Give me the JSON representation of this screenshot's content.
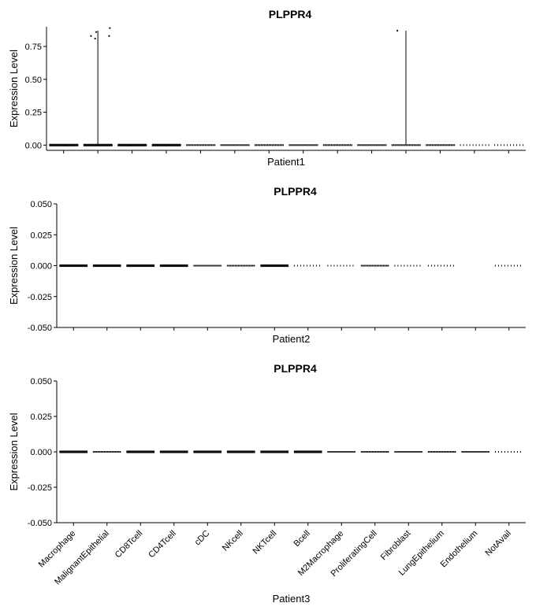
{
  "chart_data": [
    {
      "type": "violin",
      "title": "PLPPR4",
      "xlabel": "Patient1",
      "ylabel": "Expression Level",
      "ylim": [
        -0.04,
        0.9
      ],
      "yticks": [
        "0.00",
        "0.25",
        "0.50",
        "0.75"
      ],
      "ytick_values": [
        0,
        0.25,
        0.5,
        0.75
      ],
      "categories": [
        "Macrophage",
        "MalignantEpithelial",
        "CD8Tcell",
        "CD4Tcell",
        "cDC",
        "NKcell",
        "NKTcell",
        "Bcell",
        "M2Macrophage",
        "ProliferatingCell",
        "Fibroblast",
        "LungEpithelium",
        "Endothelium",
        "NotAvail"
      ],
      "show_x_tick_labels": false,
      "violin_max": [
        0,
        0.87,
        0,
        0,
        0,
        0,
        0,
        0,
        0,
        0,
        0.87,
        0,
        0,
        0
      ],
      "dot_density": [
        3,
        3,
        3,
        3,
        2,
        2,
        2,
        2,
        2,
        2,
        2,
        2,
        1,
        1
      ],
      "outliers": [
        {
          "category": "MalignantEpithelial",
          "jitter": -0.2,
          "y": 0.83
        },
        {
          "category": "MalignantEpithelial",
          "jitter": -0.08,
          "y": 0.81
        },
        {
          "category": "MalignantEpithelial",
          "jitter": -0.05,
          "y": 0.86
        },
        {
          "category": "MalignantEpithelial",
          "jitter": 0.35,
          "y": 0.89
        },
        {
          "category": "MalignantEpithelial",
          "jitter": 0.33,
          "y": 0.83
        },
        {
          "category": "Fibroblast",
          "jitter": -0.25,
          "y": 0.87
        }
      ]
    },
    {
      "type": "violin",
      "title": "PLPPR4",
      "xlabel": "Patient2",
      "ylabel": "Expression Level",
      "ylim": [
        -0.05,
        0.05
      ],
      "yticks": [
        "-0.050",
        "-0.025",
        "0.000",
        "0.025",
        "0.050"
      ],
      "ytick_values": [
        -0.05,
        -0.025,
        0,
        0.025,
        0.05
      ],
      "categories": [
        "Macrophage",
        "MalignantEpithelial",
        "CD8Tcell",
        "CD4Tcell",
        "cDC",
        "NKcell",
        "NKTcell",
        "Bcell",
        "M2Macrophage",
        "ProliferatingCell",
        "Fibroblast",
        "LungEpithelium",
        "Endothelium",
        "NotAvail"
      ],
      "show_x_tick_labels": false,
      "violin_max": [
        0,
        0,
        0,
        0,
        0,
        0,
        0,
        0,
        0,
        0,
        0,
        0,
        0,
        0
      ],
      "dot_density": [
        3,
        3,
        3,
        3,
        2,
        2,
        3,
        1,
        1,
        2,
        1,
        1,
        0,
        1
      ],
      "outliers": []
    },
    {
      "type": "violin",
      "title": "PLPPR4",
      "xlabel": "Patient3",
      "ylabel": "Expression Level",
      "ylim": [
        -0.05,
        0.05
      ],
      "yticks": [
        "-0.050",
        "-0.025",
        "0.000",
        "0.025",
        "0.050"
      ],
      "ytick_values": [
        -0.05,
        -0.025,
        0,
        0.025,
        0.05
      ],
      "categories": [
        "Macrophage",
        "MalignantEpithelial",
        "CD8Tcell",
        "CD4Tcell",
        "cDC",
        "NKcell",
        "NKTcell",
        "Bcell",
        "M2Macrophage",
        "ProliferatingCell",
        "Fibroblast",
        "LungEpithelium",
        "Endothelium",
        "NotAvail"
      ],
      "show_x_tick_labels": true,
      "violin_max": [
        0,
        0,
        0,
        0,
        0,
        0,
        0,
        0,
        0,
        0,
        0,
        0,
        0,
        0
      ],
      "dot_density": [
        3,
        2,
        3,
        3,
        3,
        3,
        3,
        3,
        2,
        2,
        2,
        2,
        2,
        1
      ],
      "outliers": []
    }
  ]
}
